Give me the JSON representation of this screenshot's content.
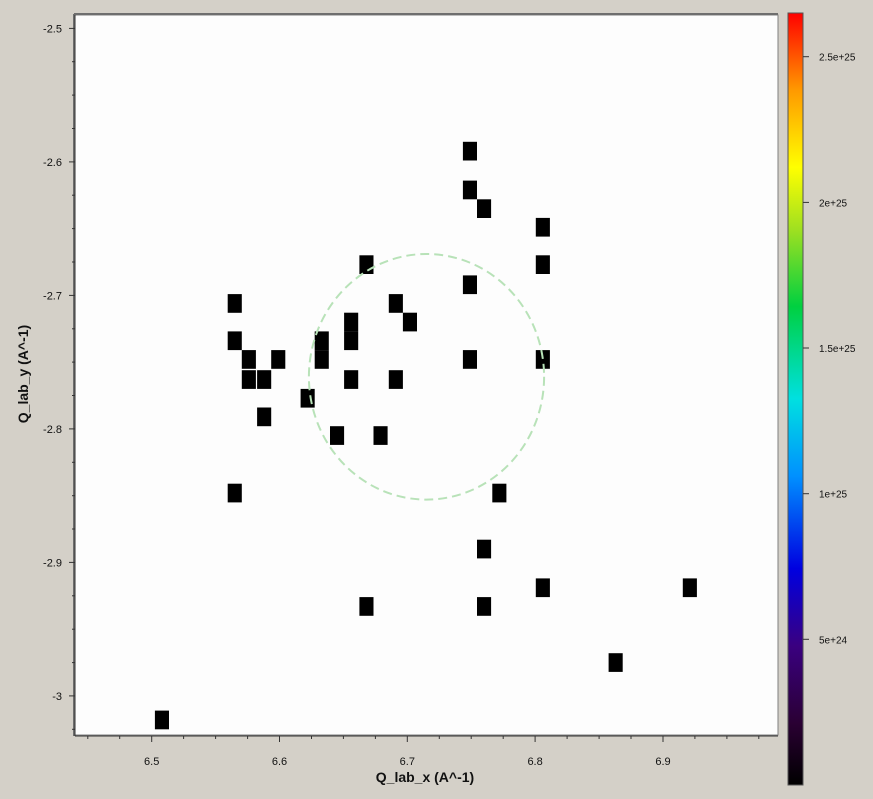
{
  "chart_data": {
    "type": "heatmap",
    "xlabel": "Q_lab_x (A^-1)",
    "ylabel": "Q_lab_y (A^-1)",
    "xlim": [
      6.44,
      6.99
    ],
    "ylim": [
      -3.03,
      -2.49
    ],
    "x_ticks": [
      6.5,
      6.6,
      6.7,
      6.8,
      6.9
    ],
    "x_tick_labels": [
      "6.5",
      "6.6",
      "6.7",
      "6.8",
      "6.9"
    ],
    "y_ticks": [
      -2.5,
      -2.6,
      -2.7,
      -2.8,
      -2.9,
      -3.0
    ],
    "y_tick_labels": [
      "-2.5",
      "-2.6",
      "-2.7",
      "-2.8",
      "-2.9",
      "-3"
    ],
    "grid": false,
    "cell_size": [
      0.011,
      0.014
    ],
    "cell_color": "#000000",
    "plot_background": "#fdfdfd",
    "points": [
      [
        6.749,
        -2.592
      ],
      [
        6.749,
        -2.621
      ],
      [
        6.76,
        -2.635
      ],
      [
        6.806,
        -2.649
      ],
      [
        6.806,
        -2.677
      ],
      [
        6.668,
        -2.677
      ],
      [
        6.749,
        -2.692
      ],
      [
        6.565,
        -2.706
      ],
      [
        6.691,
        -2.706
      ],
      [
        6.702,
        -2.72
      ],
      [
        6.656,
        -2.72
      ],
      [
        6.565,
        -2.734
      ],
      [
        6.633,
        -2.734
      ],
      [
        6.656,
        -2.734
      ],
      [
        6.576,
        -2.748
      ],
      [
        6.599,
        -2.748
      ],
      [
        6.633,
        -2.748
      ],
      [
        6.749,
        -2.748
      ],
      [
        6.806,
        -2.748
      ],
      [
        6.576,
        -2.763
      ],
      [
        6.588,
        -2.763
      ],
      [
        6.656,
        -2.763
      ],
      [
        6.691,
        -2.763
      ],
      [
        6.622,
        -2.777
      ],
      [
        6.588,
        -2.791
      ],
      [
        6.645,
        -2.805
      ],
      [
        6.679,
        -2.805
      ],
      [
        6.565,
        -2.848
      ],
      [
        6.772,
        -2.848
      ],
      [
        6.76,
        -2.89
      ],
      [
        6.806,
        -2.919
      ],
      [
        6.921,
        -2.919
      ],
      [
        6.668,
        -2.933
      ],
      [
        6.76,
        -2.933
      ],
      [
        6.863,
        -2.975
      ],
      [
        6.508,
        -3.018
      ]
    ],
    "roi_circle": {
      "center": [
        6.715,
        -2.761
      ],
      "radius": 0.092,
      "color": "#b8e2b8"
    },
    "colorbar": {
      "colormap": "rainbow",
      "range": [
        0,
        2.65e+25
      ],
      "tick_values": [
        5e+24,
        1e+25,
        1.5e+25,
        2e+25,
        2.5e+25
      ],
      "tick_labels": [
        "5e+24",
        "1e+25",
        "1.5e+25",
        "2e+25",
        "2.5e+25"
      ]
    }
  }
}
